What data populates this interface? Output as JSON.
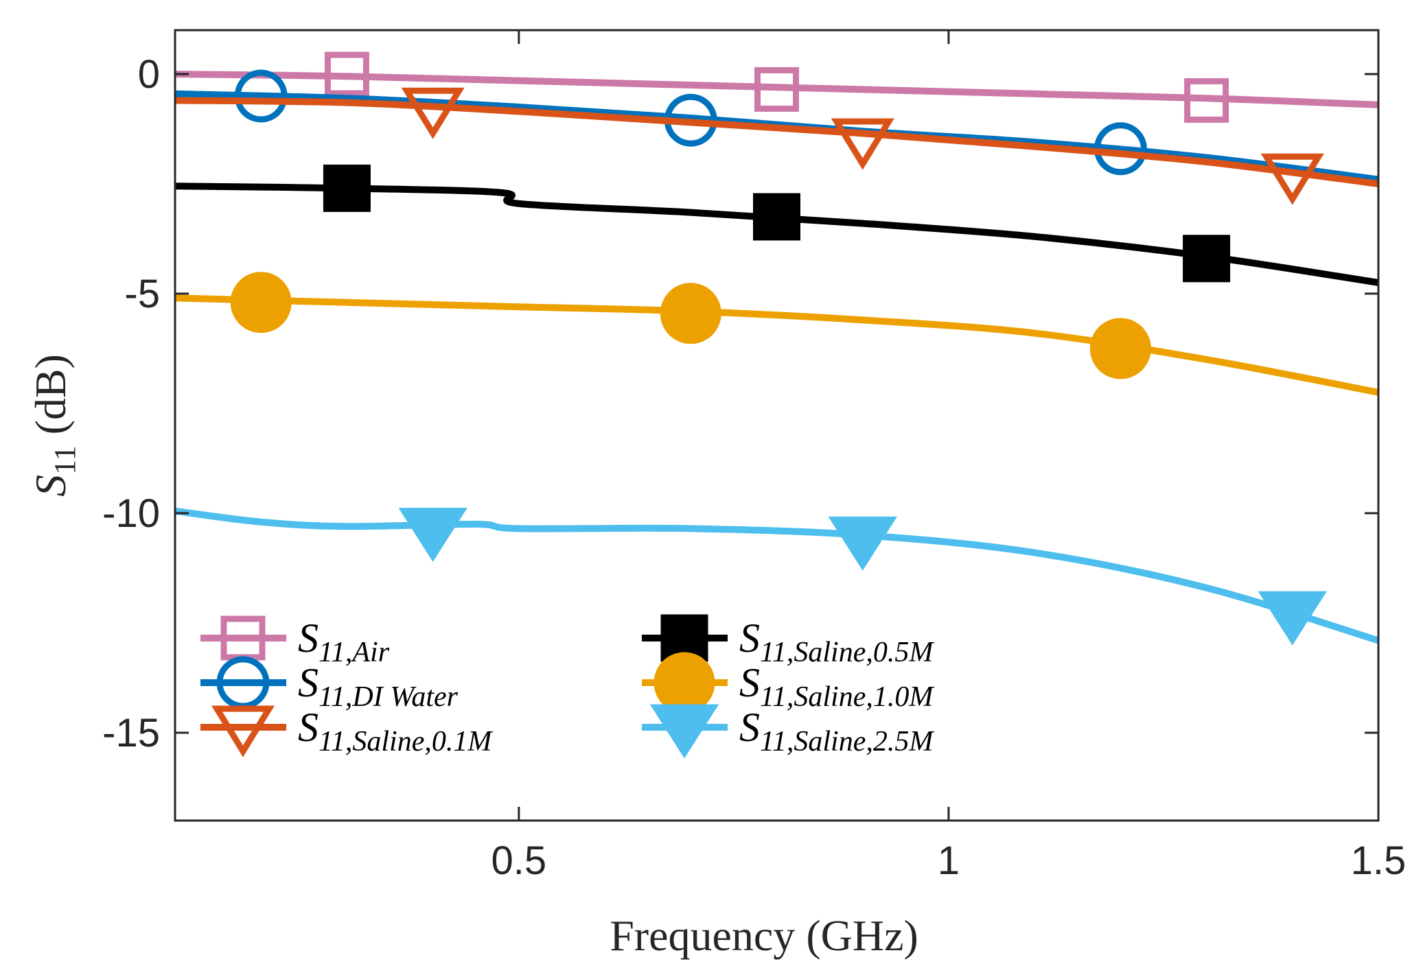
{
  "chart_data": {
    "type": "line",
    "title": "",
    "xlabel": "Frequency (GHz)",
    "ylabel": "S11 (dB)",
    "xlim": [
      0.1,
      1.5
    ],
    "ylim": [
      -17,
      1
    ],
    "xticks": [
      0.5,
      1,
      1.5
    ],
    "xtick_labels": [
      "0.5",
      "1",
      "1.5"
    ],
    "yticks": [
      0,
      -5,
      -10,
      -15
    ],
    "ytick_labels": [
      "0",
      "-5",
      "-10",
      "-15"
    ],
    "grid": false,
    "legend_position": "bottom-left",
    "series": [
      {
        "name": "S11,Air",
        "main": "S",
        "sub": "11,Air",
        "color": "#CC79A7",
        "marker": "square-open",
        "x": [
          0.1,
          0.3,
          0.5,
          0.7,
          0.9,
          1.1,
          1.3,
          1.5
        ],
        "y": [
          0.0,
          -0.05,
          -0.15,
          -0.25,
          -0.35,
          -0.45,
          -0.55,
          -0.7
        ],
        "marker_x": [
          0.3,
          0.8,
          1.3
        ],
        "marker_y": [
          0.0,
          -0.35,
          -0.6
        ]
      },
      {
        "name": "S11,DI Water",
        "main": "S",
        "sub": "11,DI  Water",
        "color": "#0072BD",
        "marker": "circle-open",
        "x": [
          0.1,
          0.3,
          0.5,
          0.7,
          0.9,
          1.1,
          1.3,
          1.5
        ],
        "y": [
          -0.45,
          -0.55,
          -0.75,
          -1.0,
          -1.3,
          -1.55,
          -1.9,
          -2.4
        ],
        "marker_x": [
          0.2,
          0.7,
          1.2
        ],
        "marker_y": [
          -0.5,
          -1.05,
          -1.7
        ]
      },
      {
        "name": "S11,Saline,0.1M",
        "main": "S",
        "sub": "11,Saline,0.1M",
        "color": "#D95319",
        "marker": "triangle-down-open",
        "x": [
          0.1,
          0.3,
          0.5,
          0.7,
          0.9,
          1.1,
          1.3,
          1.5
        ],
        "y": [
          -0.6,
          -0.65,
          -0.85,
          -1.1,
          -1.35,
          -1.65,
          -2.0,
          -2.5
        ],
        "marker_x": [
          0.4,
          0.9,
          1.4
        ],
        "marker_y": [
          -0.8,
          -1.5,
          -2.3
        ]
      },
      {
        "name": "S11,Saline,0.5M",
        "main": "S",
        "sub": "11,Saline,0.5M",
        "color": "#000000",
        "marker": "square-filled",
        "x": [
          0.1,
          0.3,
          0.48,
          0.5,
          0.7,
          0.9,
          1.1,
          1.3,
          1.5
        ],
        "y": [
          -2.55,
          -2.6,
          -2.7,
          -2.95,
          -3.15,
          -3.4,
          -3.7,
          -4.15,
          -4.75
        ],
        "marker_x": [
          0.3,
          0.8,
          1.3
        ],
        "marker_y": [
          -2.6,
          -3.25,
          -4.2
        ]
      },
      {
        "name": "S11,Saline,1.0M",
        "main": "S",
        "sub": "11,Saline,1.0M",
        "color": "#EDA100",
        "marker": "circle-filled",
        "x": [
          0.1,
          0.3,
          0.5,
          0.7,
          0.9,
          1.1,
          1.3,
          1.5
        ],
        "y": [
          -5.1,
          -5.2,
          -5.3,
          -5.4,
          -5.6,
          -5.9,
          -6.5,
          -7.25
        ],
        "marker_x": [
          0.2,
          0.7,
          1.2
        ],
        "marker_y": [
          -5.2,
          -5.45,
          -6.25
        ]
      },
      {
        "name": "S11,Saline,2.5M",
        "main": "S",
        "sub": "11,Saline,2.5M",
        "color": "#4DBEEE",
        "marker": "triangle-down-filled",
        "x": [
          0.1,
          0.2,
          0.3,
          0.45,
          0.5,
          0.7,
          0.9,
          1.1,
          1.3,
          1.5
        ],
        "y": [
          -9.95,
          -10.2,
          -10.3,
          -10.25,
          -10.35,
          -10.35,
          -10.5,
          -10.9,
          -11.7,
          -12.9
        ],
        "marker_x": [
          0.4,
          0.9,
          1.4
        ],
        "marker_y": [
          -10.4,
          -10.6,
          -12.3
        ]
      }
    ]
  }
}
